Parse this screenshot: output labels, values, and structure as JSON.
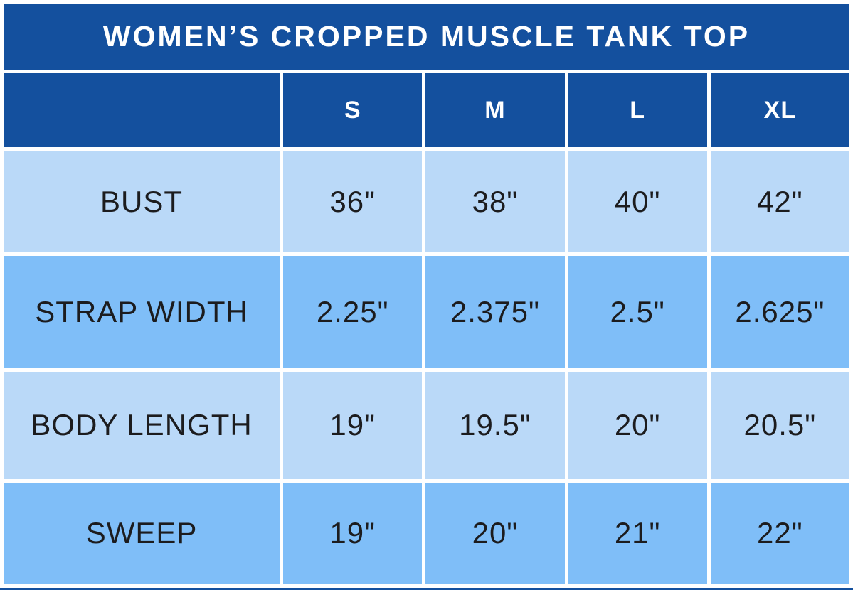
{
  "title": "WOMEN’S CROPPED MUSCLE TANK TOP",
  "sizes": [
    "S",
    "M",
    "L",
    "XL"
  ],
  "rows": [
    {
      "label": "BUST",
      "values": [
        "36\"",
        "38\"",
        "40\"",
        "42\""
      ]
    },
    {
      "label": "STRAP WIDTH",
      "values": [
        "2.25\"",
        "2.375\"",
        "2.5\"",
        "2.625\""
      ]
    },
    {
      "label": "BODY LENGTH",
      "values": [
        "19\"",
        "19.5\"",
        "20\"",
        "20.5\""
      ]
    },
    {
      "label": "SWEEP",
      "values": [
        "19\"",
        "20\"",
        "21\"",
        "22\""
      ]
    }
  ],
  "colors": {
    "header_blue": "#14509E",
    "row_light": "#BAD9F8",
    "row_medium": "#7FBEF8",
    "text_dark": "#1C1C1E",
    "background": "#FFFFFF"
  },
  "chart_data": {
    "type": "table",
    "title": "WOMEN’S CROPPED MUSCLE TANK TOP",
    "columns": [
      "",
      "S",
      "M",
      "L",
      "XL"
    ],
    "rows": [
      [
        "BUST",
        "36\"",
        "38\"",
        "40\"",
        "42\""
      ],
      [
        "STRAP WIDTH",
        "2.25\"",
        "2.375\"",
        "2.5\"",
        "2.625\""
      ],
      [
        "BODY LENGTH",
        "19\"",
        "19.5\"",
        "20\"",
        "20.5\""
      ],
      [
        "SWEEP",
        "19\"",
        "20\"",
        "21\"",
        "22\""
      ]
    ]
  }
}
